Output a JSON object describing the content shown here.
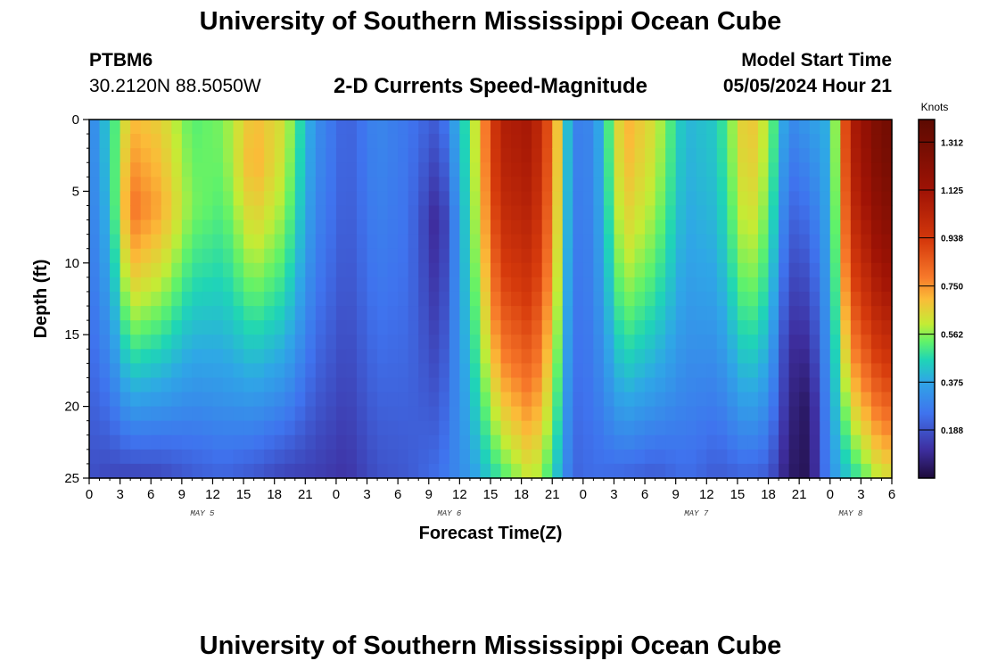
{
  "header": {
    "title": "University of Southern Mississippi Ocean Cube",
    "station_id": "PTBM6",
    "coordinates": "30.2120N  88.5050W",
    "product": "2-D Currents Speed-Magnitude",
    "model_start_label": "Model Start Time",
    "model_start_value": "05/05/2024 Hour 21"
  },
  "footer": {
    "title": "University of Southern Mississippi Ocean Cube"
  },
  "chart_data": {
    "type": "heatmap",
    "title": "2-D Currents Speed-Magnitude",
    "xlabel": "Forecast Time(Z)",
    "ylabel": "Depth (ft)",
    "x_unit": "hours since 05/05/2024 00Z",
    "x_range": [
      0,
      78
    ],
    "ylim": [
      0,
      25
    ],
    "y_ticks": [
      "0",
      "5",
      "10",
      "15",
      "20",
      "25"
    ],
    "y_tick_values": [
      0,
      5,
      10,
      15,
      20,
      25
    ],
    "x_ticks": [
      "0",
      "3",
      "6",
      "9",
      "12",
      "15",
      "18",
      "21",
      "0",
      "3",
      "6",
      "9",
      "12",
      "15",
      "18",
      "21",
      "0",
      "3",
      "6",
      "9",
      "12",
      "15",
      "18",
      "21",
      "0",
      "3",
      "6"
    ],
    "x_tick_hours": [
      0,
      3,
      6,
      9,
      12,
      15,
      18,
      21,
      24,
      27,
      30,
      33,
      36,
      39,
      42,
      45,
      48,
      51,
      54,
      57,
      60,
      63,
      66,
      69,
      72,
      75,
      78
    ],
    "day_labels": [
      {
        "label": "MAY 5",
        "hour": 11
      },
      {
        "label": "MAY 6",
        "hour": 35
      },
      {
        "label": "MAY 7",
        "hour": 59
      },
      {
        "label": "MAY 8",
        "hour": 74
      }
    ],
    "colorbar": {
      "unit": "Knots",
      "ticks": [
        "1.312",
        "1.125",
        "0.938",
        "0.750",
        "0.562",
        "0.375",
        "0.188"
      ],
      "tick_values": [
        1.312,
        1.125,
        0.938,
        0.75,
        0.562,
        0.375,
        0.188
      ],
      "range": [
        0,
        1.4
      ],
      "colors": [
        "#1d0a3a",
        "#3e2fa0",
        "#3f73ee",
        "#2fa7e6",
        "#1fd5b6",
        "#60f26a",
        "#c4ec35",
        "#fbbb38",
        "#f7792a",
        "#d63a0c",
        "#a01305",
        "#5c0a01"
      ],
      "color_stops": [
        0,
        0.08,
        0.18,
        0.27,
        0.33,
        0.38,
        0.43,
        0.5,
        0.56,
        0.66,
        0.8,
        1.0
      ]
    },
    "grid": {
      "time_step_hours": 1,
      "depth_step_ft": 1,
      "speed_profiles": [
        {
          "hour": 0,
          "surface": 0.28,
          "bottom": 0.18
        },
        {
          "hour": 2,
          "surface": 0.45,
          "bottom": 0.16
        },
        {
          "hour": 4,
          "surface": 0.7,
          "core": 0.8,
          "core_depth": 6,
          "bottom": 0.15
        },
        {
          "hour": 7,
          "surface": 0.66,
          "core": 0.72,
          "core_depth": 6,
          "bottom": 0.16
        },
        {
          "hour": 10,
          "surface": 0.52,
          "core": 0.55,
          "core_depth": 6,
          "bottom": 0.2
        },
        {
          "hour": 13,
          "surface": 0.55,
          "bottom": 0.22
        },
        {
          "hour": 16,
          "surface": 0.7,
          "core": 0.72,
          "core_depth": 3,
          "bottom": 0.19
        },
        {
          "hour": 19,
          "surface": 0.62,
          "bottom": 0.15
        },
        {
          "hour": 22,
          "surface": 0.32,
          "bottom": 0.14
        },
        {
          "hour": 25,
          "surface": 0.21,
          "bottom": 0.12
        },
        {
          "hour": 28,
          "surface": 0.3,
          "bottom": 0.18
        },
        {
          "hour": 31,
          "surface": 0.26,
          "bottom": 0.2
        },
        {
          "hour": 34,
          "surface": 0.2,
          "core": 0.08,
          "core_depth": 7,
          "bottom": 0.25
        },
        {
          "hour": 37,
          "surface": 0.52,
          "bottom": 0.34
        },
        {
          "hour": 40,
          "surface": 1.05,
          "bottom": 0.5
        },
        {
          "hour": 43,
          "surface": 1.1,
          "bottom": 0.62
        },
        {
          "hour": 45,
          "surface": 0.82,
          "bottom": 0.48
        },
        {
          "hour": 47,
          "surface": 0.28,
          "bottom": 0.22
        },
        {
          "hour": 49,
          "surface": 0.3,
          "bottom": 0.24
        },
        {
          "hour": 52,
          "surface": 0.72,
          "bottom": 0.22
        },
        {
          "hour": 55,
          "surface": 0.62,
          "bottom": 0.2
        },
        {
          "hour": 58,
          "surface": 0.4,
          "bottom": 0.24
        },
        {
          "hour": 61,
          "surface": 0.44,
          "bottom": 0.2
        },
        {
          "hour": 64,
          "surface": 0.7,
          "bottom": 0.22
        },
        {
          "hour": 66,
          "surface": 0.58,
          "bottom": 0.2
        },
        {
          "hour": 68,
          "surface": 0.3,
          "core": 0.1,
          "core_depth": 16,
          "bottom": 0.05
        },
        {
          "hour": 70,
          "surface": 0.35,
          "core": 0.04,
          "core_depth": 20,
          "bottom": 0.03
        },
        {
          "hour": 72,
          "surface": 0.4,
          "bottom": 0.32
        },
        {
          "hour": 74,
          "surface": 1.05,
          "bottom": 0.45
        },
        {
          "hour": 77,
          "surface": 1.3,
          "bottom": 0.62
        }
      ]
    }
  }
}
